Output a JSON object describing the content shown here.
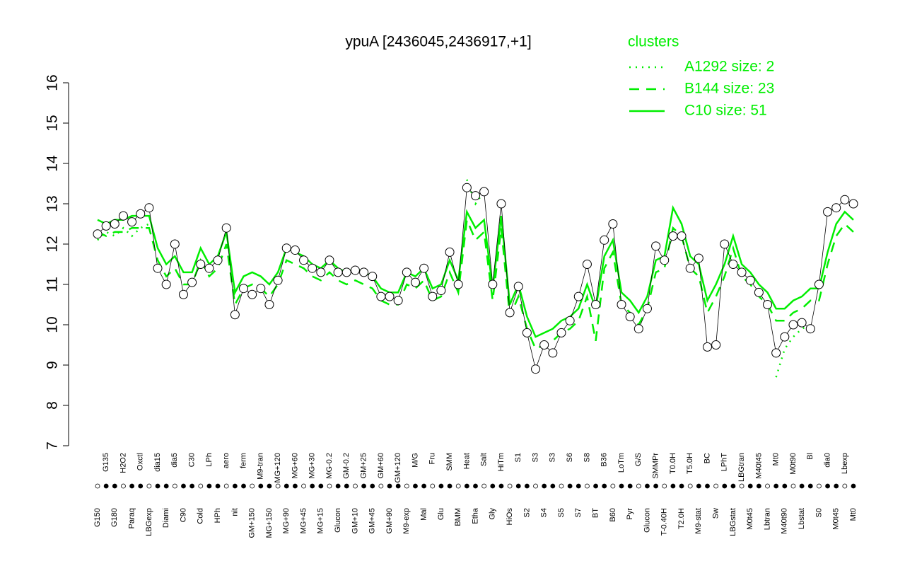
{
  "chart_data": {
    "type": "line",
    "title": "ypuA [2436045,2436917,+1]",
    "legend_title": "clusters",
    "legend": "top-right",
    "ylim": [
      7,
      16
    ],
    "yticks": [
      7,
      8,
      9,
      10,
      11,
      12,
      13,
      14,
      15,
      16
    ],
    "categories": [
      "G150",
      "G135",
      "G180",
      "H2O2",
      "Paraq",
      "Oxctl",
      "LBGexp",
      "dia15",
      "Diami",
      "dia5",
      "C90",
      "C30",
      "Cold",
      "LPh",
      "HPh",
      "aero",
      "nit",
      "ferm",
      "GM+150",
      "M9-tran",
      "MG+150",
      "MG+120",
      "MG+90",
      "MG+60",
      "MG+45",
      "MG+30",
      "MG+15",
      "MG-0.2",
      "Glucon",
      "GM-0.2",
      "GM+10",
      "GM+25",
      "GM+45",
      "GM+60",
      "GM+90",
      "GM+120",
      "M9-exp",
      "M/G",
      "Mal",
      "Fru",
      "Glu",
      "SMM",
      "BMM",
      "Heat",
      "Etha",
      "Salt",
      "Gly",
      "HiTm",
      "HiOs",
      "S1",
      "S2",
      "S3",
      "S4",
      "S3",
      "S5",
      "S6",
      "S7",
      "S8",
      "BT",
      "B36",
      "B60",
      "LoTm",
      "Pyr",
      "G/S",
      "Glucon",
      "SMMPr",
      "T-0.40H",
      "T0.0H",
      "T2.0H",
      "T5.0H",
      "M9-stat",
      "BC",
      "Sw",
      "LPhT",
      "LBGstat",
      "LBGtran",
      "M0t45",
      "M40t45",
      "Lbtran",
      "Mt0",
      "M40t90",
      "M0t90",
      "Lbstat",
      "Bl",
      "S0",
      "dia0",
      "M0t45",
      "Lbexp",
      "Mt0"
    ],
    "values": [
      12.25,
      12.45,
      12.5,
      12.7,
      12.55,
      12.75,
      12.9,
      11.4,
      11.0,
      12.0,
      10.75,
      11.05,
      11.5,
      11.4,
      11.6,
      12.4,
      10.25,
      10.9,
      10.75,
      10.9,
      10.5,
      11.1,
      11.9,
      11.85,
      11.6,
      11.4,
      11.3,
      11.6,
      11.3,
      11.3,
      11.35,
      11.3,
      11.2,
      10.7,
      10.7,
      10.6,
      11.3,
      11.05,
      11.4,
      10.7,
      10.85,
      11.8,
      11.0,
      13.4,
      13.2,
      13.3,
      11.0,
      13.0,
      10.3,
      10.95,
      9.8,
      8.9,
      9.5,
      9.3,
      9.8,
      10.1,
      10.7,
      11.5,
      10.5,
      12.1,
      12.5,
      10.5,
      10.2,
      9.9,
      10.4,
      11.95,
      11.6,
      12.2,
      12.2,
      11.4,
      11.65,
      9.45,
      9.5,
      12.0,
      11.5,
      11.3,
      11.1,
      10.8,
      10.5,
      9.3,
      9.7,
      10.0,
      10.05,
      9.9,
      11.0,
      12.8,
      12.9,
      13.1,
      13.0
    ],
    "point_color": "#ffffff",
    "series": [
      {
        "name": "A1292 size: 2",
        "color": "#00ee00",
        "dash": "dotted",
        "values": [
          12.1,
          12.3,
          12.2,
          12.4,
          12.2,
          12.4,
          12.5,
          null,
          null,
          null,
          null,
          null,
          null,
          null,
          null,
          null,
          null,
          null,
          null,
          null,
          null,
          null,
          null,
          null,
          null,
          null,
          null,
          null,
          null,
          null,
          null,
          null,
          null,
          null,
          null,
          null,
          null,
          null,
          null,
          null,
          null,
          null,
          null,
          13.6,
          13.0,
          13.3,
          null,
          null,
          null,
          null,
          null,
          null,
          null,
          null,
          null,
          null,
          null,
          null,
          null,
          null,
          null,
          null,
          null,
          null,
          null,
          null,
          null,
          null,
          null,
          null,
          null,
          null,
          null,
          null,
          null,
          null,
          null,
          null,
          null,
          8.7,
          9.4,
          9.7,
          9.9,
          10.0,
          null,
          null,
          null,
          null,
          null
        ]
      },
      {
        "name": "B144 size: 23",
        "color": "#00ee00",
        "dash": "dashed",
        "values": [
          12.3,
          12.2,
          12.3,
          12.3,
          12.4,
          12.4,
          12.4,
          11.6,
          11.2,
          11.4,
          11.0,
          11.0,
          11.6,
          11.2,
          11.4,
          12.0,
          10.5,
          10.9,
          11.0,
          10.9,
          10.7,
          11.0,
          11.6,
          11.5,
          11.4,
          11.2,
          11.1,
          11.3,
          11.1,
          11.0,
          11.1,
          11.0,
          10.9,
          10.6,
          10.5,
          10.5,
          11.0,
          10.9,
          11.1,
          10.6,
          10.7,
          11.3,
          10.8,
          12.6,
          12.1,
          12.3,
          10.6,
          12.4,
          10.2,
          10.7,
          9.9,
          9.4,
          9.5,
          9.6,
          9.8,
          9.9,
          10.1,
          10.7,
          9.6,
          11.4,
          11.8,
          10.5,
          10.3,
          10.0,
          10.4,
          11.3,
          11.4,
          12.4,
          12.2,
          11.4,
          11.2,
          10.3,
          10.7,
          11.2,
          11.9,
          11.2,
          11.0,
          10.7,
          10.5,
          10.1,
          10.1,
          10.3,
          10.4,
          10.6,
          10.6,
          11.5,
          12.2,
          12.5,
          12.3
        ]
      },
      {
        "name": "C10 size: 51",
        "color": "#00ee00",
        "dash": "solid",
        "values": [
          12.6,
          12.5,
          12.6,
          12.6,
          12.7,
          12.7,
          12.7,
          11.9,
          11.5,
          11.7,
          11.3,
          11.3,
          11.9,
          11.5,
          11.7,
          12.3,
          10.8,
          11.2,
          11.3,
          11.2,
          11.0,
          11.3,
          11.9,
          11.8,
          11.7,
          11.5,
          11.4,
          11.6,
          11.4,
          11.3,
          11.4,
          11.3,
          11.2,
          10.9,
          10.8,
          10.8,
          11.3,
          11.2,
          11.4,
          10.9,
          11.0,
          11.6,
          11.1,
          12.8,
          12.4,
          12.6,
          10.9,
          12.7,
          10.5,
          11.0,
          10.2,
          9.7,
          9.8,
          9.9,
          10.1,
          10.2,
          10.4,
          11.0,
          10.4,
          11.7,
          12.1,
          10.8,
          10.6,
          10.3,
          10.7,
          11.6,
          11.7,
          12.9,
          12.5,
          11.7,
          11.5,
          10.6,
          11.0,
          11.5,
          12.2,
          11.5,
          11.3,
          11.0,
          10.8,
          10.4,
          10.4,
          10.6,
          10.7,
          10.9,
          10.9,
          11.8,
          12.5,
          12.8,
          12.6
        ]
      }
    ]
  }
}
